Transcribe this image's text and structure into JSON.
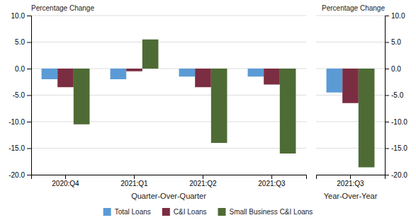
{
  "chart_data": [
    {
      "type": "bar",
      "categories": [
        "2020:Q4",
        "2021:Q1",
        "2021:Q2",
        "2021:Q3"
      ],
      "series": [
        {
          "name": "Total Loans",
          "color": "#5b9bd5",
          "values": [
            -2.0,
            -2.0,
            -1.5,
            -1.5
          ]
        },
        {
          "name": "C&I Loans",
          "color": "#7b2d42",
          "values": [
            -3.5,
            -0.5,
            -3.5,
            -3.0
          ]
        },
        {
          "name": "Small Business C&I Loans",
          "color": "#4e6b35",
          "values": [
            -10.5,
            5.5,
            -14.0,
            -16.0
          ]
        }
      ],
      "xlabel": "Quarter-Over-Quarter",
      "ylabel": "Percentage Change",
      "ylim": [
        -20.0,
        10.0
      ],
      "yticks": [
        {
          "value": -20,
          "label": "-20.0"
        },
        {
          "value": -15,
          "label": "-15.0"
        },
        {
          "value": -10,
          "label": "-10.0"
        },
        {
          "value": -5,
          "label": "-5.0"
        },
        {
          "value": 0,
          "label": "0.0"
        },
        {
          "value": 5,
          "label": "5.0"
        },
        {
          "value": 10,
          "label": "10.0"
        }
      ],
      "grid": true,
      "legend": "bottom"
    },
    {
      "type": "bar",
      "categories": [
        "2021:Q3"
      ],
      "series": [
        {
          "color": "#5b9bd5",
          "values": [
            -4.5
          ]
        },
        {
          "color": "#7b2d42",
          "values": [
            -6.5
          ]
        },
        {
          "color": "#4e6b35",
          "values": [
            -18.6
          ]
        }
      ],
      "xlabel": "Year-Over-Year",
      "ylabel": "Percentage Change",
      "ylim": [
        -20.0,
        10.0
      ],
      "yticks": [
        {
          "value": -20,
          "label": "-20.0"
        },
        {
          "value": -15,
          "label": "-15.0"
        },
        {
          "value": -10,
          "label": "-10.0"
        },
        {
          "value": -5,
          "label": "-5.0"
        },
        {
          "value": 0,
          "label": "0.0"
        },
        {
          "value": 5,
          "label": "5.0"
        },
        {
          "value": 10,
          "label": "10.0"
        }
      ],
      "grid": true
    }
  ]
}
